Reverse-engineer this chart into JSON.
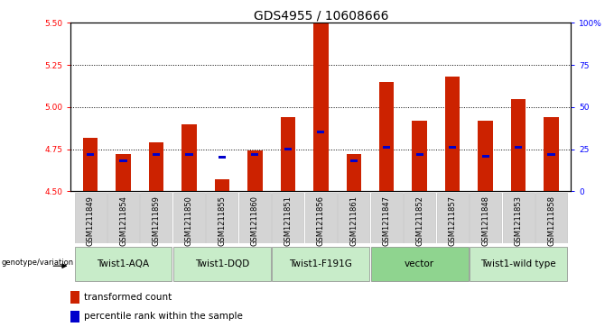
{
  "title": "GDS4955 / 10608666",
  "samples": [
    "GSM1211849",
    "GSM1211854",
    "GSM1211859",
    "GSM1211850",
    "GSM1211855",
    "GSM1211860",
    "GSM1211851",
    "GSM1211856",
    "GSM1211861",
    "GSM1211847",
    "GSM1211852",
    "GSM1211857",
    "GSM1211848",
    "GSM1211853",
    "GSM1211858"
  ],
  "red_values": [
    4.82,
    4.72,
    4.79,
    4.9,
    4.57,
    4.74,
    4.94,
    5.5,
    4.72,
    5.15,
    4.92,
    5.18,
    4.92,
    5.05,
    4.94
  ],
  "blue_percentiles": [
    22,
    18,
    22,
    22,
    20,
    22,
    25,
    35,
    18,
    26,
    22,
    26,
    21,
    26,
    22
  ],
  "ylim_left": [
    4.5,
    5.5
  ],
  "ylim_right": [
    0,
    100
  ],
  "yticks_left": [
    4.5,
    4.75,
    5.0,
    5.25,
    5.5
  ],
  "yticks_right": [
    0,
    25,
    50,
    75,
    100
  ],
  "ytick_right_labels": [
    "0",
    "25",
    "50",
    "75",
    "100%"
  ],
  "groups": [
    {
      "label": "Twist1-AQA",
      "indices": [
        0,
        1,
        2
      ],
      "color": "#c8ecc9"
    },
    {
      "label": "Twist1-DQD",
      "indices": [
        3,
        4,
        5
      ],
      "color": "#c8ecc9"
    },
    {
      "label": "Twist1-F191G",
      "indices": [
        6,
        7,
        8
      ],
      "color": "#c8ecc9"
    },
    {
      "label": "vector",
      "indices": [
        9,
        10,
        11
      ],
      "color": "#8fd48f"
    },
    {
      "label": "Twist1-wild type",
      "indices": [
        12,
        13,
        14
      ],
      "color": "#c8ecc9"
    }
  ],
  "bar_width": 0.45,
  "bar_color_red": "#cc2200",
  "bar_color_blue": "#0000cc",
  "base_value": 4.5,
  "legend_label_red": "transformed count",
  "legend_label_blue": "percentile rank within the sample",
  "genotype_label": "genotype/variation",
  "title_fontsize": 10,
  "tick_fontsize": 6.5,
  "sample_fontsize": 6.0,
  "group_fontsize": 7.5,
  "legend_fontsize": 7.5
}
